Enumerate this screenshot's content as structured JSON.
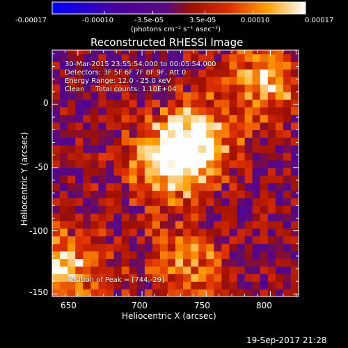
{
  "colorbar": {
    "tick_labels": [
      "-0.00017",
      "-0.00010",
      "-3.5e-05",
      "3.5e-05",
      "0.00010",
      "0.00017"
    ],
    "tick_values": [
      -0.00017,
      -0.0001,
      -3.5e-05,
      3.5e-05,
      0.0001,
      0.00017
    ],
    "units": "(photons cm⁻² s⁻¹ asec⁻²)",
    "range": [
      -0.00017,
      0.00017
    ]
  },
  "chart_data": {
    "type": "heatmap",
    "title": "Reconstructed RHESSI Image",
    "xlabel": "Heliocentric X (arcsec)",
    "ylabel": "Heliocentric Y (arcsec)",
    "xlim": [
      630,
      822
    ],
    "ylim": [
      -152,
      43
    ],
    "x_ticks": [
      650,
      700,
      750,
      800
    ],
    "y_ticks": [
      0,
      -50,
      -100,
      -150
    ],
    "x_tick_labels": [
      "650",
      "700",
      "750",
      "800"
    ],
    "y_tick_labels": [
      "0",
      "-50",
      "-100",
      "-150"
    ],
    "annotations": [
      "30-Mar-2015 23:55:54.000 to 00:05:54.000",
      "Detectors: 3F 5F 6F 7F 8F 9F, Att 0",
      "Energy Range: 12.0 - 25.0 keV",
      "Clean     Total counts: 1.10E+04"
    ],
    "peak_label": "Position of Peak = [744,-29]",
    "peak": [
      744,
      -29
    ],
    "sources": [
      {
        "x": 718,
        "y": -45,
        "level": 0.00017
      },
      {
        "x": 744,
        "y": -29,
        "level": 0.00017
      },
      {
        "x": 795,
        "y": 20,
        "level": 0.00015
      },
      {
        "x": 640,
        "y": -130,
        "level": 0.00016
      },
      {
        "x": 735,
        "y": -125,
        "level": 0.00012
      }
    ]
  },
  "footer": {
    "timestamp": "19-Sep-2017 21:28"
  }
}
